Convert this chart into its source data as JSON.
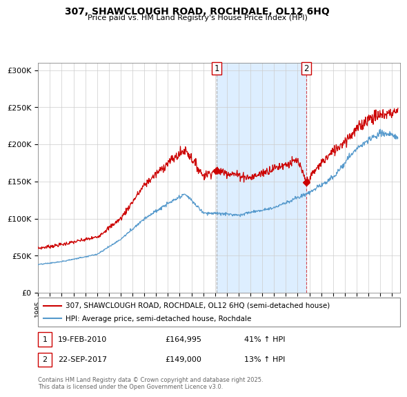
{
  "title": "307, SHAWCLOUGH ROAD, ROCHDALE, OL12 6HQ",
  "subtitle": "Price paid vs. HM Land Registry's House Price Index (HPI)",
  "legend_red": "307, SHAWCLOUGH ROAD, ROCHDALE, OL12 6HQ (semi-detached house)",
  "legend_blue": "HPI: Average price, semi-detached house, Rochdale",
  "footnote": "Contains HM Land Registry data © Crown copyright and database right 2025.\nThis data is licensed under the Open Government Licence v3.0.",
  "transaction1_date": "19-FEB-2010",
  "transaction1_price": "£164,995",
  "transaction1_hpi": "41% ↑ HPI",
  "transaction2_date": "22-SEP-2017",
  "transaction2_price": "£149,000",
  "transaction2_hpi": "13% ↑ HPI",
  "red_color": "#cc0000",
  "blue_color": "#5599cc",
  "shading_color": "#ddeeff",
  "ylim": [
    0,
    310000
  ],
  "yticks": [
    0,
    50000,
    100000,
    150000,
    200000,
    250000,
    300000
  ],
  "ytick_labels": [
    "£0",
    "£50K",
    "£100K",
    "£150K",
    "£200K",
    "£250K",
    "£300K"
  ],
  "vline1_x": 2010.13,
  "vline2_x": 2017.73,
  "marker1_y": 164995,
  "marker2_y": 149000,
  "xlim_left": 1995.0,
  "xlim_right": 2025.7
}
